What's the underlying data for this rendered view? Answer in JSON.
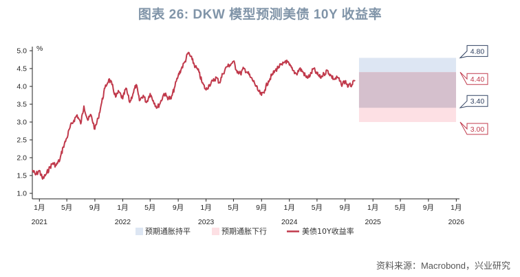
{
  "title": "图表 26: DKW 模型预测美债 10Y 收益率",
  "source": "资料来源：Macrobond，兴业研究",
  "colors": {
    "series": "#c0394b",
    "band_upper": "#dde6f3",
    "band_lower": "#fde0e4",
    "band_overlap": "#d5c0cd",
    "callout_upper": "#2f4060",
    "callout_lower": "#c0394b"
  },
  "chart_data": {
    "type": "line",
    "title": "图表 26: DKW 模型预测美债 10Y 收益率",
    "unit_label": "%",
    "ylim": [
      1.0,
      5.0
    ],
    "yticks": [
      "5.0",
      "4.5",
      "4.0",
      "3.5",
      "3.0",
      "2.5",
      "2.0",
      "1.5",
      "1.0"
    ],
    "xlim": [
      "2020-12-01",
      "2026-01-15"
    ],
    "xticks": [
      {
        "date": "2021-01-01",
        "month": "1月",
        "year": "2021"
      },
      {
        "date": "2021-05-01",
        "month": "5月",
        "year": ""
      },
      {
        "date": "2021-09-01",
        "month": "9月",
        "year": ""
      },
      {
        "date": "2022-01-01",
        "month": "1月",
        "year": "2022"
      },
      {
        "date": "2022-05-01",
        "month": "5月",
        "year": ""
      },
      {
        "date": "2022-09-01",
        "month": "9月",
        "year": ""
      },
      {
        "date": "2023-01-01",
        "month": "1月",
        "year": "2023"
      },
      {
        "date": "2023-05-01",
        "month": "5月",
        "year": ""
      },
      {
        "date": "2023-09-01",
        "month": "9月",
        "year": ""
      },
      {
        "date": "2024-01-01",
        "month": "1月",
        "year": "2024"
      },
      {
        "date": "2024-05-01",
        "month": "5月",
        "year": ""
      },
      {
        "date": "2024-09-01",
        "month": "9月",
        "year": ""
      },
      {
        "date": "2025-01-01",
        "month": "1月",
        "year": "2025"
      },
      {
        "date": "2025-05-01",
        "month": "5月",
        "year": ""
      },
      {
        "date": "2025-09-01",
        "month": "9月",
        "year": ""
      },
      {
        "date": "2026-01-01",
        "month": "1月",
        "year": "2026"
      }
    ],
    "series": [
      {
        "name": "美债10Y收益率",
        "points": [
          [
            "2020-12-01",
            1.65
          ],
          [
            "2020-12-15",
            1.52
          ],
          [
            "2021-01-01",
            1.64
          ],
          [
            "2021-01-15",
            1.4
          ],
          [
            "2021-02-01",
            1.55
          ],
          [
            "2021-02-15",
            1.72
          ],
          [
            "2021-03-01",
            1.85
          ],
          [
            "2021-03-15",
            1.78
          ],
          [
            "2021-04-01",
            1.95
          ],
          [
            "2021-04-15",
            2.3
          ],
          [
            "2021-05-01",
            2.55
          ],
          [
            "2021-05-15",
            2.85
          ],
          [
            "2021-06-01",
            3.05
          ],
          [
            "2021-06-15",
            3.2
          ],
          [
            "2021-07-01",
            2.95
          ],
          [
            "2021-07-15",
            3.45
          ],
          [
            "2021-08-01",
            3.05
          ],
          [
            "2021-08-15",
            3.2
          ],
          [
            "2021-09-01",
            2.8
          ],
          [
            "2021-09-15",
            3.1
          ],
          [
            "2021-10-01",
            3.55
          ],
          [
            "2021-10-15",
            3.95
          ],
          [
            "2021-11-01",
            4.2
          ],
          [
            "2021-11-15",
            4.05
          ],
          [
            "2021-12-01",
            3.7
          ],
          [
            "2021-12-15",
            3.85
          ],
          [
            "2022-01-01",
            3.65
          ],
          [
            "2022-01-15",
            3.95
          ],
          [
            "2022-02-01",
            3.55
          ],
          [
            "2022-02-15",
            3.8
          ],
          [
            "2022-03-01",
            4.05
          ],
          [
            "2022-03-15",
            3.6
          ],
          [
            "2022-04-01",
            3.75
          ],
          [
            "2022-04-15",
            3.55
          ],
          [
            "2022-05-01",
            3.8
          ],
          [
            "2022-05-15",
            3.6
          ],
          [
            "2022-06-01",
            3.4
          ],
          [
            "2022-06-15",
            3.55
          ],
          [
            "2022-07-01",
            3.8
          ],
          [
            "2022-07-15",
            3.7
          ],
          [
            "2022-08-01",
            3.65
          ],
          [
            "2022-08-15",
            3.95
          ],
          [
            "2022-09-01",
            4.3
          ],
          [
            "2022-09-15",
            4.5
          ],
          [
            "2022-10-01",
            4.7
          ],
          [
            "2022-10-15",
            4.95
          ],
          [
            "2022-11-01",
            4.75
          ],
          [
            "2022-11-15",
            4.55
          ],
          [
            "2022-12-01",
            4.4
          ],
          [
            "2022-12-15",
            4.1
          ],
          [
            "2023-01-01",
            3.9
          ],
          [
            "2023-01-15",
            4.05
          ],
          [
            "2023-02-01",
            4.15
          ],
          [
            "2023-02-15",
            4.25
          ],
          [
            "2023-03-01",
            4.1
          ],
          [
            "2023-03-15",
            4.35
          ],
          [
            "2023-04-01",
            4.55
          ],
          [
            "2023-04-15",
            4.6
          ],
          [
            "2023-05-01",
            4.7
          ],
          [
            "2023-05-15",
            4.45
          ],
          [
            "2023-06-01",
            4.35
          ],
          [
            "2023-06-15",
            4.5
          ],
          [
            "2023-07-01",
            4.4
          ],
          [
            "2023-07-15",
            4.25
          ],
          [
            "2023-08-01",
            4.1
          ],
          [
            "2023-08-15",
            3.9
          ],
          [
            "2023-09-01",
            3.75
          ],
          [
            "2023-09-15",
            3.9
          ],
          [
            "2023-10-01",
            4.15
          ],
          [
            "2023-10-15",
            4.3
          ],
          [
            "2023-11-01",
            4.45
          ],
          [
            "2023-11-15",
            4.55
          ],
          [
            "2023-12-01",
            4.6
          ],
          [
            "2023-12-15",
            4.72
          ],
          [
            "2024-01-01",
            4.6
          ],
          [
            "2024-01-15",
            4.45
          ],
          [
            "2024-02-01",
            4.35
          ],
          [
            "2024-02-15",
            4.5
          ],
          [
            "2024-03-01",
            4.4
          ],
          [
            "2024-03-15",
            4.25
          ],
          [
            "2024-04-01",
            4.3
          ],
          [
            "2024-04-15",
            4.5
          ],
          [
            "2024-05-01",
            4.35
          ],
          [
            "2024-05-15",
            4.25
          ],
          [
            "2024-06-01",
            4.35
          ],
          [
            "2024-06-15",
            4.45
          ],
          [
            "2024-07-01",
            4.3
          ],
          [
            "2024-07-15",
            4.2
          ],
          [
            "2024-08-01",
            4.25
          ],
          [
            "2024-08-15",
            4.05
          ],
          [
            "2024-09-01",
            4.15
          ],
          [
            "2024-09-15",
            4.0
          ],
          [
            "2024-10-01",
            4.05
          ],
          [
            "2024-10-15",
            4.15
          ]
        ]
      }
    ],
    "bands": [
      {
        "name": "预期通胀持平",
        "start": "2024-11-01",
        "end": "2025-12-31",
        "low": 3.4,
        "high": 4.8,
        "color": "#dde6f3"
      },
      {
        "name": "预期通胀下行",
        "start": "2024-11-01",
        "end": "2025-12-31",
        "low": 3.0,
        "high": 4.4,
        "color": "#fde0e4"
      }
    ],
    "callouts": [
      {
        "value": 4.8,
        "label": "4.80",
        "style": "upper"
      },
      {
        "value": 4.4,
        "label": "4.40",
        "style": "lower"
      },
      {
        "value": 3.4,
        "label": "3.40",
        "style": "upper"
      },
      {
        "value": 3.0,
        "label": "3.00",
        "style": "lower"
      }
    ],
    "legend": [
      {
        "label": "预期通胀持平",
        "kind": "box",
        "color": "#dde6f3"
      },
      {
        "label": "预期通胀下行",
        "kind": "box",
        "color": "#fde0e4"
      },
      {
        "label": "美债10Y收益率",
        "kind": "line",
        "color": "#c0394b"
      }
    ],
    "legend_position": "bottom",
    "grid": false
  }
}
